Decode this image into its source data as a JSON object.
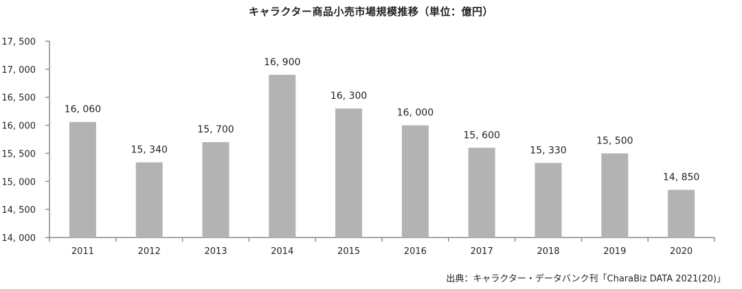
{
  "chart_data": {
    "type": "bar",
    "title": "キャラクター商品小売市場規模推移（単位：億円）",
    "categories": [
      "2011",
      "2012",
      "2013",
      "2014",
      "2015",
      "2016",
      "2017",
      "2018",
      "2019",
      "2020"
    ],
    "values": [
      16060,
      15340,
      15700,
      16900,
      16300,
      16000,
      15600,
      15330,
      15500,
      14850
    ],
    "value_labels": [
      "16, 060",
      "15, 340",
      "15, 700",
      "16, 900",
      "16, 300",
      "16, 000",
      "15, 600",
      "15, 330",
      "15, 500",
      "14, 850"
    ],
    "ylim": [
      14000,
      17500
    ],
    "yticks": [
      14000,
      14500,
      15000,
      15500,
      16000,
      16500,
      17000,
      17500
    ],
    "ytick_labels": [
      "14, 000",
      "14, 500",
      "15, 000",
      "15, 500",
      "16, 000",
      "16, 500",
      "17, 000",
      "17, 500"
    ],
    "xlabel": "",
    "ylabel": "",
    "grid": false,
    "bar_color": "#b3b3b3",
    "axis_color": "#8c8c8c"
  },
  "source": "出典：キャラクター・データバンク刊「CharaBiz DATA 2021(20)」"
}
